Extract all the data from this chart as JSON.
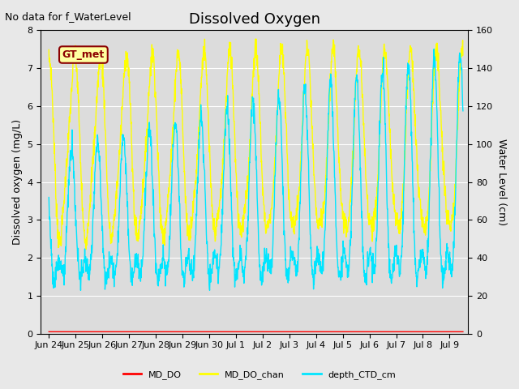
{
  "title": "Dissolved Oxygen",
  "top_left_note": "No data for f_WaterLevel",
  "ylabel_left": "Dissolved oxygen (mg/L)",
  "ylabel_right": "Water Level (cm)",
  "ylim_left": [
    0,
    8.0
  ],
  "ylim_right": [
    0,
    160
  ],
  "yticks_left": [
    0.0,
    1.0,
    2.0,
    3.0,
    4.0,
    5.0,
    6.0,
    7.0,
    8.0
  ],
  "yticks_right": [
    0,
    20,
    40,
    60,
    80,
    100,
    120,
    140,
    160
  ],
  "fig_bg_color": "#e8e8e8",
  "plot_bg_color": "#dcdcdc",
  "gt_met_label": "GT_met",
  "gt_met_text_color": "#8b0000",
  "gt_met_box_color": "#ffffa0",
  "legend_entries": [
    "MD_DO",
    "MD_DO_chan",
    "depth_CTD_cm"
  ],
  "legend_colors": [
    "#ff0000",
    "#ffff00",
    "#00e5ff"
  ],
  "md_do_color": "#ff0000",
  "md_do_chan_color": "#ffff00",
  "depth_ctd_color": "#00e5ff",
  "x_tick_labels": [
    "Jun 24",
    "Jun 25",
    "Jun 26",
    "Jun 27",
    "Jun 28",
    "Jun 29",
    "Jun 30",
    "Jul 1",
    "Jul 2",
    "Jul 3",
    "Jul 4",
    "Jul 5",
    "Jul 6",
    "Jul 7",
    "Jul 8",
    "Jul 9"
  ],
  "title_fontsize": 13,
  "label_fontsize": 9,
  "tick_fontsize": 8,
  "note_fontsize": 9
}
